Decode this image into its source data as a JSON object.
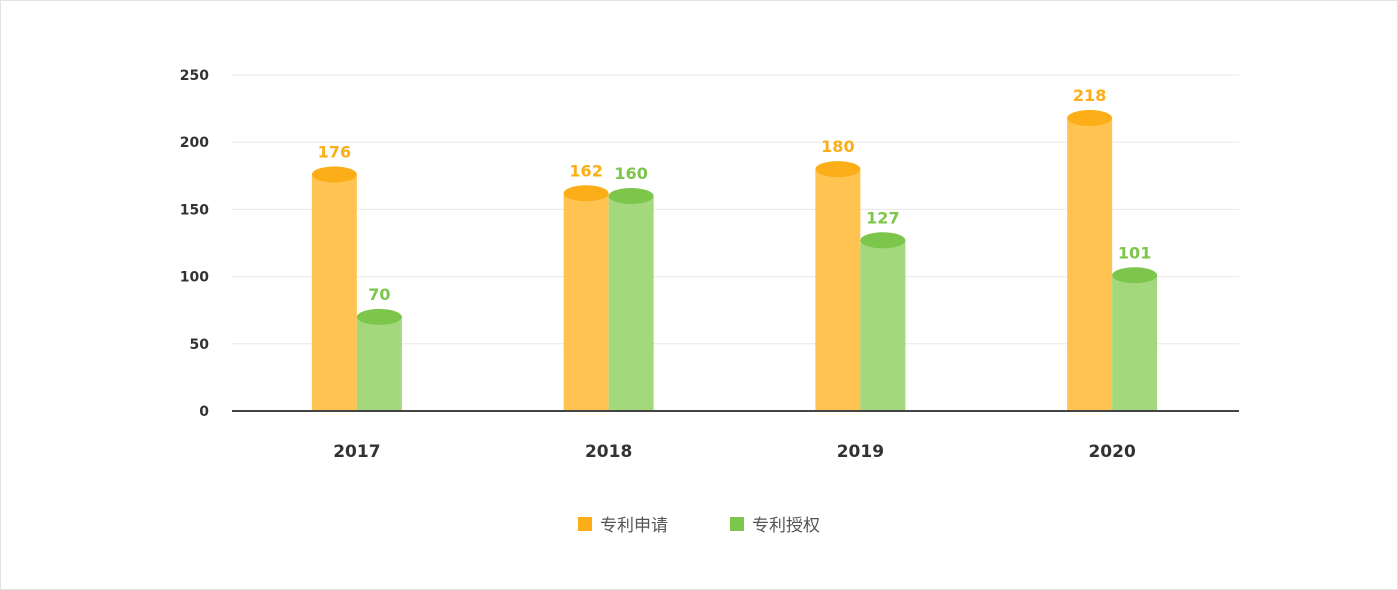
{
  "chart_data": {
    "type": "bar",
    "categories": [
      "2017",
      "2018",
      "2019",
      "2020"
    ],
    "series": [
      {
        "name": "专利申请",
        "values": [
          176,
          162,
          180,
          218
        ],
        "color": "#FFC352",
        "top_color": "#FBAE17",
        "label_color": "#FBAE17"
      },
      {
        "name": "专利授权",
        "values": [
          70,
          160,
          127,
          101
        ],
        "color": "#A3D97C",
        "top_color": "#7DC64C",
        "label_color": "#7DC64C"
      }
    ],
    "yticks": [
      "0",
      "50",
      "100",
      "150",
      "200",
      "250"
    ],
    "ylim": [
      0,
      250
    ],
    "grid": true,
    "legend_position": "bottom-center"
  }
}
